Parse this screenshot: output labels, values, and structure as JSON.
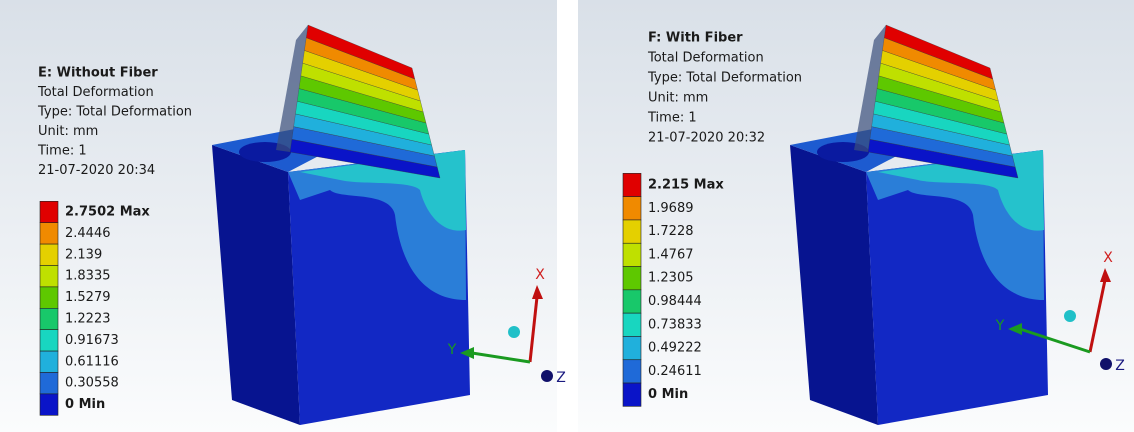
{
  "panels": [
    {
      "title": "E: Without Fiber",
      "lines": [
        "Total Deformation",
        "Type: Total Deformation",
        "Unit: mm",
        "Time: 1",
        "21-07-2020 20:34"
      ],
      "legend": [
        "2.7502 Max",
        "2.4446",
        "2.139",
        "1.8335",
        "1.5279",
        "1.2223",
        "0.91673",
        "0.61116",
        "0.30558",
        "0 Min"
      ],
      "axes": {
        "x": "X",
        "y": "Y",
        "z": "Z"
      }
    },
    {
      "title": "F: With Fiber",
      "lines": [
        "Total Deformation",
        "Type: Total Deformation",
        "Unit: mm",
        "Time: 1",
        "21-07-2020 20:32"
      ],
      "legend": [
        "2.215 Max",
        "1.9689",
        "1.7228",
        "1.4767",
        "1.2305",
        "0.98444",
        "0.73833",
        "0.49222",
        "0.24611",
        "0 Min"
      ],
      "axes": {
        "x": "X",
        "y": "Y",
        "z": "Z"
      }
    }
  ]
}
